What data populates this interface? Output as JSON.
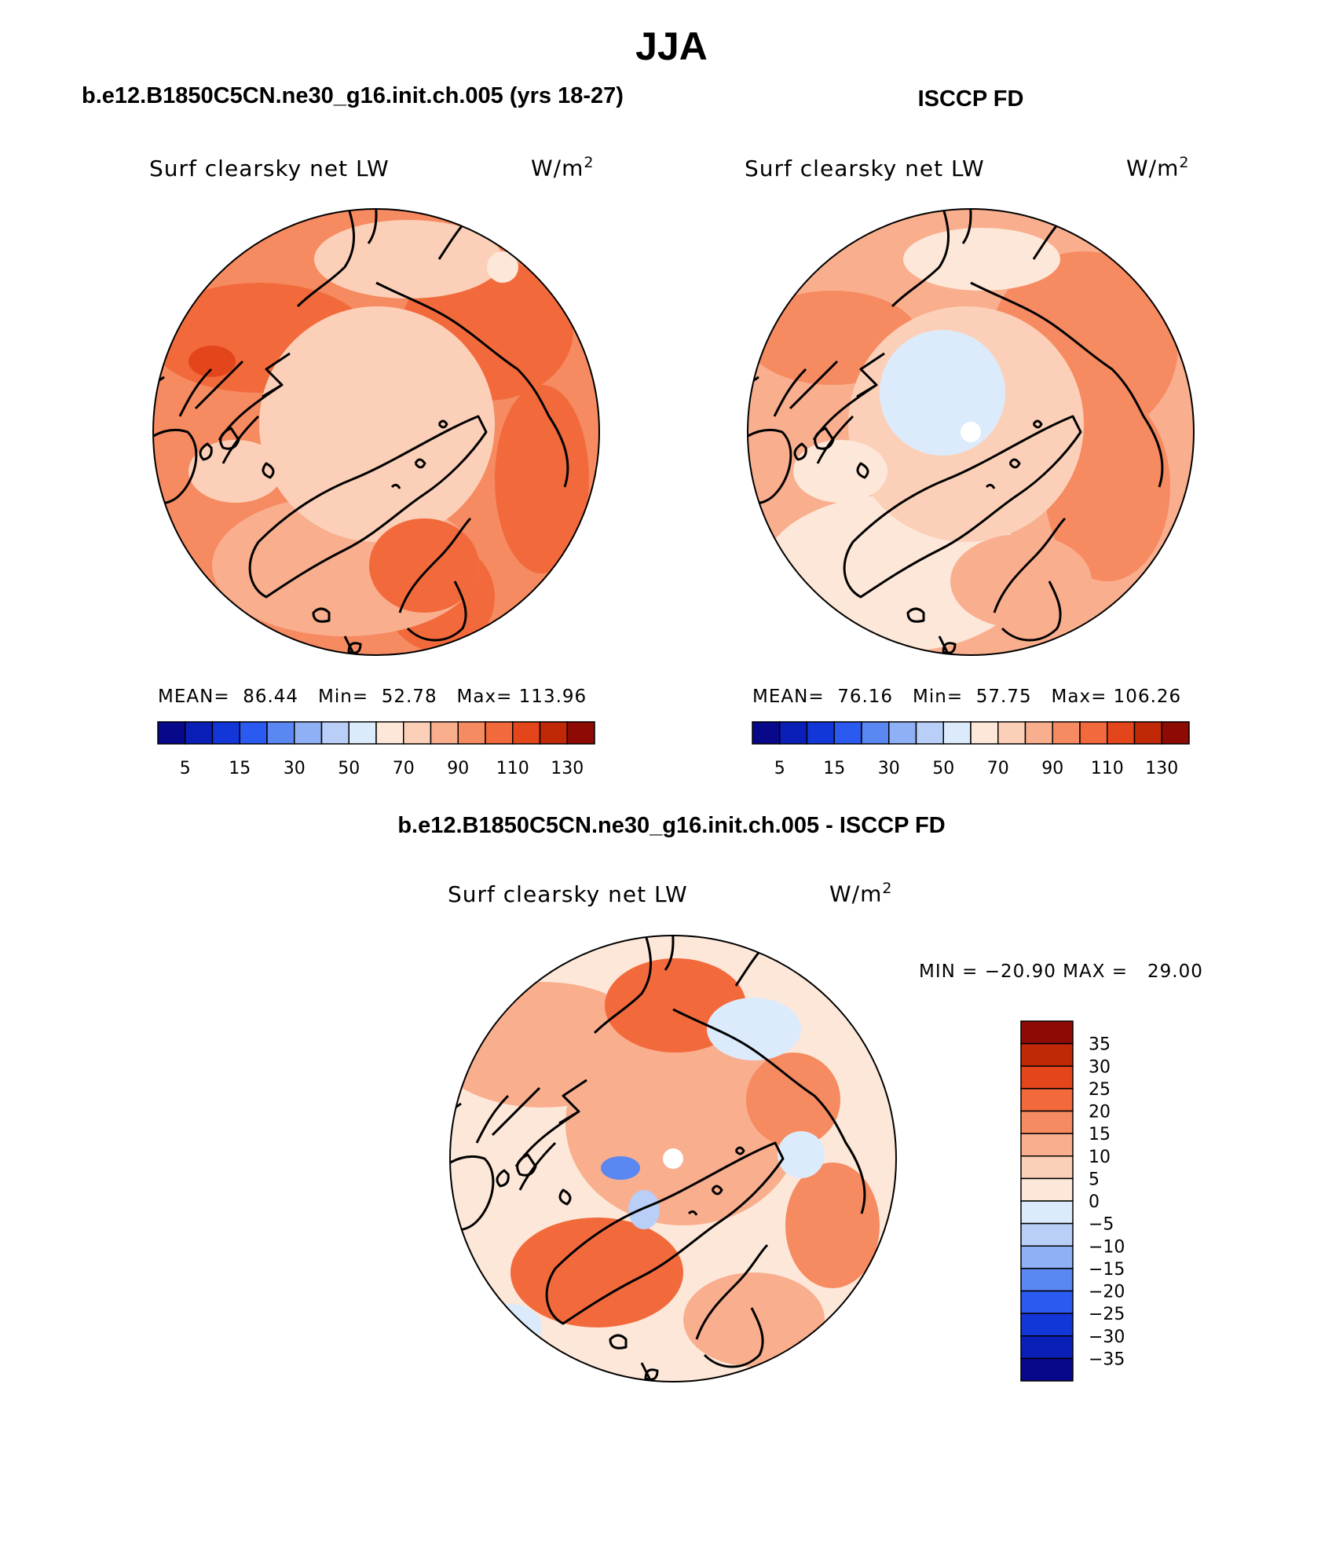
{
  "title": "JJA",
  "panels": {
    "model": {
      "header": "b.e12.B1850C5CN.ne30_g16.init.ch.005 (yrs 18-27)",
      "variable": "Surf clearsky net LW",
      "units_base": "W/m",
      "units_exp": "2",
      "mean_label": "MEAN=",
      "mean": "86.44",
      "min_label": "Min=",
      "min": "52.78",
      "max_label": "Max=",
      "max": "113.96"
    },
    "obs": {
      "header": "ISCCP FD",
      "variable": "Surf clearsky net LW",
      "units_base": "W/m",
      "units_exp": "2",
      "mean_label": "MEAN=",
      "mean": "76.16",
      "min_label": "Min=",
      "min": "57.75",
      "max_label": "Max=",
      "max": "106.26"
    },
    "diff": {
      "header": "b.e12.B1850C5CN.ne30_g16.init.ch.005 - ISCCP FD",
      "variable": "Surf clearsky net LW",
      "units_base": "W/m",
      "units_exp": "2",
      "minmax": "MIN = −20.90 MAX =   29.00"
    }
  },
  "colorbars": {
    "abs": {
      "colors": [
        "#08088a",
        "#0a1fb8",
        "#1236d8",
        "#2a5af0",
        "#5a87f2",
        "#8fb0f5",
        "#b9cff7",
        "#dcebfb",
        "#fde7d8",
        "#fcd0b8",
        "#f9ae8e",
        "#f68a60",
        "#f26a3c",
        "#e4461c",
        "#c02808",
        "#8e0a04"
      ],
      "labels": [
        "5",
        "15",
        "30",
        "50",
        "70",
        "90",
        "110",
        "130"
      ]
    },
    "diff": {
      "colors": [
        "#08088a",
        "#0a1fb8",
        "#1236d8",
        "#2a5af0",
        "#5a87f2",
        "#8fb0f5",
        "#b9cff7",
        "#dcebfb",
        "#fde7d8",
        "#fcd0b8",
        "#f9ae8e",
        "#f68a60",
        "#f26a3c",
        "#e4461c",
        "#c02808",
        "#8e0a04"
      ],
      "labels": [
        "35",
        "30",
        "25",
        "20",
        "15",
        "10",
        "5",
        "0",
        "−5",
        "−10",
        "−15",
        "−20",
        "−25",
        "−30",
        "−35"
      ]
    }
  }
}
